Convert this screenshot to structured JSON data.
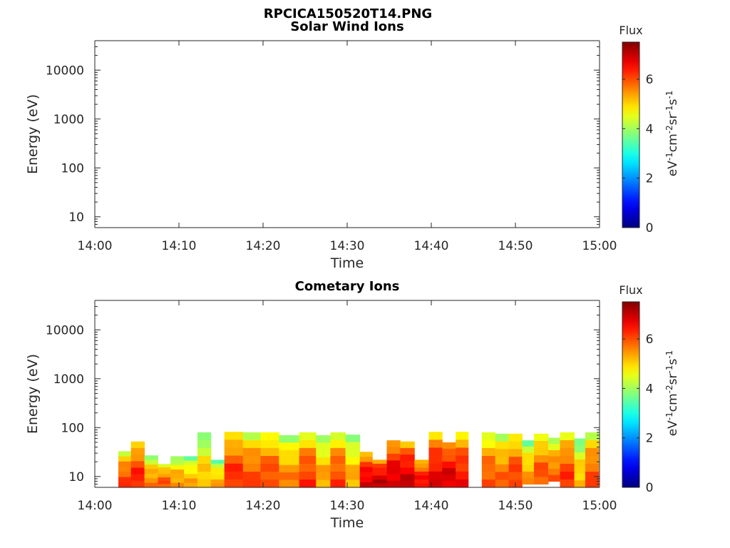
{
  "figure_title": "RPCICA150520T14.PNG",
  "chart_data": [
    {
      "type": "heatmap",
      "title": "Solar Wind Ions",
      "xlabel": "Time",
      "ylabel": "Energy (eV)",
      "x_tick_labels": [
        "14:00",
        "14:10",
        "14:20",
        "14:30",
        "14:40",
        "14:50",
        "15:00"
      ],
      "x_ticks_minutes": [
        0,
        10,
        20,
        30,
        40,
        50,
        60
      ],
      "xlim_minutes": [
        0,
        60
      ],
      "y_scale": "log",
      "ylim": [
        6,
        40000
      ],
      "y_tick_values": [
        10,
        100,
        1000,
        10000
      ],
      "y_tick_labels": [
        "10",
        "100",
        "1000",
        "10000"
      ],
      "colorbar": {
        "title": "Flux",
        "label_parts": [
          "eV",
          "-1",
          "cm",
          "-2",
          "sr",
          "-1",
          "s",
          "-1"
        ],
        "ticks": [
          "0",
          "2",
          "4",
          "6"
        ],
        "range": [
          0,
          7.5
        ],
        "colormap": "jet"
      },
      "columns": []
    },
    {
      "type": "heatmap",
      "title": "Cometary Ions",
      "xlabel": "Time",
      "ylabel": "Energy (eV)",
      "x_tick_labels": [
        "14:00",
        "14:10",
        "14:20",
        "14:30",
        "14:40",
        "14:50",
        "15:00"
      ],
      "x_ticks_minutes": [
        0,
        10,
        20,
        30,
        40,
        50,
        60
      ],
      "xlim_minutes": [
        0,
        60
      ],
      "y_scale": "log",
      "ylim": [
        6,
        40000
      ],
      "y_tick_values": [
        10,
        100,
        1000,
        10000
      ],
      "y_tick_labels": [
        "10",
        "100",
        "1000",
        "10000"
      ],
      "colorbar": {
        "title": "Flux",
        "label_parts": [
          "eV",
          "-1",
          "cm",
          "-2",
          "sr",
          "-1",
          "s",
          "-1"
        ],
        "ticks": [
          "0",
          "2",
          "4",
          "6"
        ],
        "range": [
          0,
          7.5
        ],
        "colormap": "jet"
      },
      "columns": [
        {
          "t0": 2.8,
          "t1": 4.3,
          "emin": 6,
          "emax": 33,
          "flux": 6.1
        },
        {
          "t0": 4.3,
          "t1": 5.9,
          "emin": 6,
          "emax": 52,
          "flux": 6.4
        },
        {
          "t0": 5.9,
          "t1": 7.5,
          "emin": 6,
          "emax": 27,
          "flux": 5.6
        },
        {
          "t0": 7.5,
          "t1": 9.0,
          "emin": 6,
          "emax": 18,
          "flux": 6.0
        },
        {
          "t0": 9.0,
          "t1": 10.6,
          "emin": 6,
          "emax": 26,
          "flux": 5.5
        },
        {
          "t0": 10.6,
          "t1": 12.2,
          "emin": 6,
          "emax": 26,
          "flux": 5.3
        },
        {
          "t0": 12.2,
          "t1": 13.8,
          "emin": 6,
          "emax": 80,
          "flux": 5.2
        },
        {
          "t0": 13.8,
          "t1": 15.4,
          "emin": 6,
          "emax": 22,
          "flux": 5.3
        },
        {
          "t0": 15.4,
          "t1": 17.6,
          "emin": 6,
          "emax": 82,
          "flux": 6.3
        },
        {
          "t0": 17.6,
          "t1": 19.7,
          "emin": 6,
          "emax": 80,
          "flux": 6.0
        },
        {
          "t0": 19.7,
          "t1": 21.9,
          "emin": 6,
          "emax": 80,
          "flux": 6.1
        },
        {
          "t0": 21.9,
          "t1": 24.3,
          "emin": 6,
          "emax": 70,
          "flux": 5.6
        },
        {
          "t0": 24.3,
          "t1": 26.3,
          "emin": 6,
          "emax": 80,
          "flux": 6.2
        },
        {
          "t0": 26.3,
          "t1": 28.0,
          "emin": 6,
          "emax": 70,
          "flux": 5.4
        },
        {
          "t0": 28.0,
          "t1": 29.8,
          "emin": 6,
          "emax": 80,
          "flux": 6.1
        },
        {
          "t0": 29.8,
          "t1": 31.5,
          "emin": 6,
          "emax": 72,
          "flux": 5.3
        },
        {
          "t0": 31.5,
          "t1": 33.0,
          "emin": 6,
          "emax": 32,
          "flux": 6.8
        },
        {
          "t0": 33.0,
          "t1": 34.7,
          "emin": 6,
          "emax": 22,
          "flux": 7.0
        },
        {
          "t0": 34.7,
          "t1": 36.3,
          "emin": 6,
          "emax": 55,
          "flux": 6.9
        },
        {
          "t0": 36.3,
          "t1": 38.0,
          "emin": 6,
          "emax": 52,
          "flux": 6.9
        },
        {
          "t0": 38.0,
          "t1": 39.7,
          "emin": 6,
          "emax": 22,
          "flux": 6.6
        },
        {
          "t0": 39.7,
          "t1": 41.3,
          "emin": 6,
          "emax": 82,
          "flux": 6.7
        },
        {
          "t0": 41.3,
          "t1": 42.9,
          "emin": 6,
          "emax": 50,
          "flux": 6.9
        },
        {
          "t0": 42.9,
          "t1": 44.4,
          "emin": 6,
          "emax": 82,
          "flux": 6.5
        },
        {
          "t0": 46.0,
          "t1": 47.6,
          "emin": 6,
          "emax": 80,
          "flux": 6.0
        },
        {
          "t0": 47.6,
          "t1": 49.2,
          "emin": 6,
          "emax": 75,
          "flux": 5.8
        },
        {
          "t0": 49.2,
          "t1": 50.8,
          "emin": 6,
          "emax": 75,
          "flux": 6.2
        },
        {
          "t0": 50.8,
          "t1": 52.2,
          "emin": 7,
          "emax": 55,
          "flux": 5.4
        },
        {
          "t0": 52.2,
          "t1": 53.9,
          "emin": 7,
          "emax": 75,
          "flux": 6.0
        },
        {
          "t0": 53.9,
          "t1": 55.3,
          "emin": 8,
          "emax": 62,
          "flux": 5.8
        },
        {
          "t0": 55.3,
          "t1": 57.0,
          "emin": 6,
          "emax": 80,
          "flux": 6.2
        },
        {
          "t0": 57.0,
          "t1": 58.3,
          "emin": 6,
          "emax": 60,
          "flux": 5.2
        },
        {
          "t0": 58.3,
          "t1": 59.9,
          "emin": 6,
          "emax": 80,
          "flux": 6.0
        }
      ]
    }
  ]
}
